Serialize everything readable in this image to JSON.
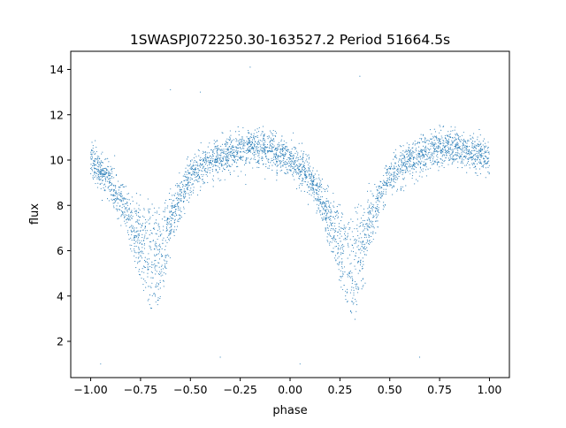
{
  "chart_data": {
    "type": "scatter",
    "title": "1SWASPJ072250.30-163527.2 Period 51664.5s",
    "xlabel": "phase",
    "ylabel": "flux",
    "xlim": [
      -1.1,
      1.1
    ],
    "ylim": [
      0.4,
      14.8
    ],
    "x_ticks": [
      -1.0,
      -0.75,
      -0.5,
      -0.25,
      0.0,
      0.25,
      0.5,
      0.75,
      1.0
    ],
    "x_tick_labels": [
      "−1.00",
      "−0.75",
      "−0.50",
      "−0.25",
      "0.00",
      "0.25",
      "0.50",
      "0.75",
      "1.00"
    ],
    "y_ticks": [
      2,
      4,
      6,
      8,
      10,
      12,
      14
    ],
    "y_tick_labels": [
      "2",
      "4",
      "6",
      "8",
      "10",
      "12",
      "14"
    ],
    "grid": false,
    "legend": "none",
    "marker_color": "#1f77b4",
    "series": [
      {
        "phase_range": [
          -1.0,
          1.0
        ],
        "approx_points": 4000,
        "light_curve": {
          "phase": [
            -1.0,
            -0.9,
            -0.8,
            -0.75,
            -0.72,
            -0.69,
            -0.65,
            -0.6,
            -0.5,
            -0.4,
            -0.3,
            -0.2,
            -0.1,
            0.0,
            0.1,
            0.2,
            0.25,
            0.28,
            0.31,
            0.35,
            0.4,
            0.5,
            0.6,
            0.7,
            0.8,
            0.9,
            1.0
          ],
          "flux_upper": [
            10.0,
            9.2,
            8.0,
            7.7,
            7.6,
            7.6,
            7.7,
            8.2,
            9.3,
            10.0,
            10.3,
            10.6,
            10.5,
            10.0,
            9.3,
            8.1,
            7.7,
            7.6,
            7.6,
            7.7,
            8.2,
            9.3,
            10.0,
            10.3,
            10.6,
            10.4,
            10.1
          ],
          "flux_lower": [
            10.0,
            9.0,
            6.5,
            5.0,
            4.0,
            3.1,
            4.0,
            6.5,
            9.2,
            10.0,
            10.3,
            10.6,
            10.5,
            10.0,
            9.2,
            6.5,
            5.0,
            4.0,
            3.1,
            4.0,
            6.5,
            9.2,
            10.0,
            10.3,
            10.6,
            10.4,
            10.1
          ]
        },
        "scatter_sigma": 0.4,
        "outliers": [
          [
            -0.95,
            1.0
          ],
          [
            -0.35,
            1.3
          ],
          [
            0.05,
            1.0
          ],
          [
            0.65,
            1.3
          ],
          [
            -0.2,
            14.1
          ],
          [
            0.35,
            13.7
          ],
          [
            -0.45,
            13.0
          ],
          [
            -0.6,
            13.1
          ]
        ]
      }
    ]
  }
}
